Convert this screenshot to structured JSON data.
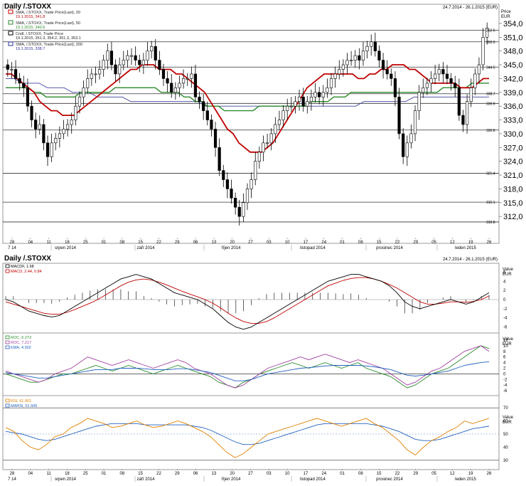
{
  "main": {
    "title": "Daily /.STOXX",
    "date_range": "24.7.2014 - 26.1.2015 (EUR)",
    "price_axis_title": "Price",
    "price_axis_unit": "EUR",
    "legend": [
      {
        "line1": "SMA, /.STOXX, Trade Price(Last), 20",
        "line2": "19.1.2015, 341.8",
        "color": "#c00000"
      },
      {
        "line1": "SMA, /.STOXX, Trade Price(Last), 50",
        "line2": "19.1.2015, 340.6",
        "color": "#2a8a2a"
      },
      {
        "line1": "Cndl, /.STOXX, Trade Price",
        "line2": "19.1.2015, 351.3, 354.2, 351.3, 353.1",
        "color": "#000000"
      },
      {
        "line1": "SMA, /.STOXX, Trade Price(Last), 200",
        "line2": "19.1.2015, 338.7",
        "color": "#3030a0"
      }
    ],
    "hlines": [
      {
        "value": 352.5,
        "label": "352.5"
      },
      {
        "value": 350.0,
        "label": "350.0"
      },
      {
        "value": 344.5,
        "label": "344.5"
      },
      {
        "value": 338.7,
        "label": "338.7"
      },
      {
        "value": 336.6,
        "label": "336.6"
      },
      {
        "value": 330.8,
        "label": "330.8"
      },
      {
        "value": 321.4,
        "label": "321.4"
      },
      {
        "value": 315.1,
        "label": "315.1"
      },
      {
        "value": 310.8,
        "label": "310.8"
      }
    ],
    "x_day_labels": [
      "28",
      "04",
      "11",
      "18",
      "25",
      "01",
      "08",
      "15",
      "22",
      "29",
      "06",
      "13",
      "20",
      "27",
      "03",
      "10",
      "17",
      "24",
      "01",
      "08",
      "15",
      "22",
      "29",
      "05",
      "12",
      "19",
      "26"
    ],
    "x_month_labels": [
      "7 14",
      "srpen 2014",
      "září 2014",
      "říjen 2014",
      "listopad 2014",
      "prosinec 2014",
      "leden 2015"
    ]
  },
  "macd": {
    "title": "Daily /.STOXX",
    "date_range": "24.7.2014 - 26.1.2015 (EUR)",
    "legend": [
      {
        "text": "MACDF, 1.68",
        "color": "#000000"
      },
      {
        "text": "MACD, 2.44, 0.84",
        "color": "#c00000"
      }
    ],
    "axis_title": "Value",
    "axis_unit": "EUR"
  },
  "roc": {
    "legend": [
      {
        "text": "ROC, 6.273",
        "color": "#2a8a2a"
      },
      {
        "text": "ROC, 7.217",
        "color": "#a040a0"
      },
      {
        "text": "EMA, 4.302",
        "color": "#2060c0"
      }
    ],
    "axis_title": "Value",
    "axis_unit": "EUR"
  },
  "rsi": {
    "legend": [
      {
        "text": "RSI, 61.901",
        "color": "#e08000"
      },
      {
        "text": "MARSI, 51.506",
        "color": "#2060c0"
      }
    ],
    "axis_title": "Value",
    "axis_unit": "EUR"
  },
  "chart_data": [
    {
      "type": "candlestick",
      "title": "Daily /.STOXX",
      "ylabel": "Price EUR",
      "ylim": [
        308,
        356
      ],
      "yticks": [
        312,
        315,
        318,
        321,
        324,
        327,
        330,
        333,
        336,
        339,
        342,
        345,
        348,
        351,
        354
      ],
      "close": [
        344,
        344,
        342,
        341,
        340,
        336,
        333,
        331,
        332,
        328,
        325,
        328,
        329,
        330,
        331,
        332,
        333,
        336,
        338,
        340,
        342,
        343,
        343,
        344,
        346,
        348,
        345,
        343,
        345,
        346,
        347,
        347,
        346,
        345,
        346,
        348,
        349,
        346,
        344,
        342,
        341,
        339,
        340,
        341,
        342,
        342,
        343,
        338,
        337,
        335,
        333,
        331,
        327,
        322,
        320,
        318,
        316,
        314,
        312,
        315,
        318,
        320,
        324,
        326,
        328,
        328,
        330,
        332,
        333,
        335,
        336,
        336,
        337,
        338,
        336,
        337,
        338,
        339,
        338,
        339,
        340,
        342,
        343,
        344,
        345,
        346,
        346,
        347,
        346,
        348,
        349,
        350,
        348,
        346,
        344,
        343,
        342,
        338,
        330,
        325,
        328,
        330,
        335,
        339,
        340,
        341,
        342,
        343,
        344,
        343,
        342,
        341,
        340,
        334,
        332,
        337,
        340,
        343,
        345,
        351,
        353
      ],
      "sma20": [
        343,
        343,
        342,
        341,
        340,
        339,
        337,
        336,
        335,
        335,
        334,
        334,
        334,
        335,
        336,
        337,
        338,
        339,
        340,
        341,
        342,
        343,
        344,
        344,
        345,
        345,
        345,
        344,
        344,
        344,
        343,
        343,
        342,
        341,
        340,
        339,
        337,
        335,
        333,
        331,
        330,
        328,
        327,
        326,
        326,
        326,
        327,
        328,
        330,
        332,
        334,
        336,
        338,
        340,
        341,
        342,
        343,
        343,
        343,
        343,
        343,
        343,
        342,
        342,
        343,
        343,
        344,
        344,
        345,
        345,
        345,
        344,
        344,
        343,
        342,
        341,
        341,
        341,
        341,
        341,
        340,
        340,
        340,
        341,
        342,
        342
      ],
      "sma50": [
        340,
        340,
        340,
        340,
        340,
        339,
        339,
        338,
        338,
        338,
        338,
        338,
        338,
        339,
        339,
        339,
        339,
        339,
        339,
        340,
        340,
        340,
        340,
        340,
        340,
        340,
        340,
        339,
        339,
        339,
        339,
        338,
        338,
        337,
        337,
        336,
        336,
        336,
        335,
        335,
        335,
        335,
        335,
        335,
        336,
        336,
        336,
        336,
        336,
        336,
        336,
        336,
        336,
        337,
        337,
        337,
        337,
        338,
        338,
        338,
        339,
        339,
        339,
        339,
        339,
        339,
        339,
        339,
        339,
        339,
        339,
        339,
        339,
        339,
        339,
        339,
        340,
        340,
        340,
        340,
        340,
        341,
        341,
        341,
        341
      ],
      "sma200": [
        342,
        342,
        341,
        341,
        341,
        340,
        340,
        340,
        339,
        339,
        339,
        338,
        338,
        338,
        338,
        337,
        337,
        337,
        337,
        337,
        337,
        337,
        337,
        337,
        336,
        336,
        336,
        336,
        336,
        336,
        336,
        336,
        336,
        336,
        336,
        336,
        336,
        336,
        336,
        336,
        336,
        336,
        336,
        337,
        337,
        337,
        337,
        337,
        337,
        338,
        338,
        338,
        338,
        338,
        338,
        338,
        338,
        338,
        338
      ]
    },
    {
      "type": "line",
      "title": "MACD",
      "ylim": [
        -7,
        7
      ],
      "series": [
        {
          "name": "MACDF",
          "values": [
            0,
            -0.5,
            -1.5,
            -2.5,
            -3,
            -3.5,
            -3.8,
            -3.5,
            -2.5,
            -1.5,
            -0.5,
            0.5,
            1.5,
            2.5,
            3.5,
            4.5,
            5,
            5.5,
            5,
            4.5,
            3.5,
            2.5,
            1.5,
            1,
            0.5,
            0,
            -1,
            -2,
            -3.5,
            -5,
            -6,
            -6.5,
            -6,
            -5,
            -4,
            -3,
            -2,
            -1,
            0,
            1,
            2,
            3,
            4,
            4.5,
            5,
            5.5,
            5.5,
            5,
            4.5,
            4,
            3,
            1.5,
            -0.5,
            -1.5,
            -2,
            -1.5,
            -1,
            -0.5,
            0,
            -0.5,
            -1,
            -0.5,
            0.5,
            1.5
          ]
        },
        {
          "name": "MACD",
          "values": [
            -0.5,
            -1,
            -1.5,
            -2,
            -2.5,
            -3,
            -3.2,
            -3.2,
            -2.8,
            -2.2,
            -1.5,
            -0.8,
            0,
            1,
            2,
            3,
            3.8,
            4.3,
            4.5,
            4.3,
            3.8,
            3.2,
            2.5,
            1.8,
            1.2,
            0.6,
            0,
            -0.8,
            -1.8,
            -3,
            -4,
            -4.8,
            -5.2,
            -5.2,
            -4.8,
            -4,
            -3,
            -2,
            -1,
            0,
            1,
            2,
            3,
            3.6,
            4.2,
            4.6,
            4.8,
            4.8,
            4.5,
            4,
            3.3,
            2.5,
            1.5,
            0.5,
            -0.5,
            -1,
            -1,
            -0.8,
            -0.5,
            -0.5,
            -0.6,
            -0.4,
            0,
            0.8
          ]
        }
      ]
    },
    {
      "type": "line",
      "title": "ROC",
      "ylim": [
        -7,
        13
      ],
      "series": [
        {
          "name": "ROC",
          "values": [
            0,
            -1,
            -2,
            -3,
            -3,
            -2,
            -1,
            0,
            0,
            1,
            2,
            3,
            2,
            1,
            2,
            3,
            2,
            1,
            0,
            1,
            2,
            3,
            2,
            1,
            0,
            -1,
            -3,
            -4,
            -5,
            -3,
            -2,
            0,
            1,
            2,
            3,
            4,
            3,
            2,
            3,
            4,
            3,
            2,
            3,
            4,
            2,
            1,
            0,
            -1,
            -3,
            -5,
            -4,
            -2,
            0,
            1,
            2,
            4,
            6,
            8,
            10,
            9
          ]
        },
        {
          "name": "ROC",
          "values": [
            1,
            0,
            -1,
            -2,
            -3,
            -2,
            0,
            1,
            2,
            4,
            6,
            5,
            4,
            3,
            4,
            5,
            4,
            3,
            2,
            3,
            4,
            5,
            4,
            2,
            1,
            0,
            -2,
            -4,
            -5,
            -4,
            -2,
            0,
            2,
            3,
            4,
            5,
            6,
            5,
            6,
            7,
            6,
            5,
            4,
            5,
            4,
            3,
            2,
            0,
            -2,
            -4,
            -3,
            -1,
            1,
            2,
            4,
            6,
            8,
            9,
            10,
            8
          ]
        },
        {
          "name": "EMA",
          "values": [
            0.5,
            0,
            -0.5,
            -1,
            -1.5,
            -1.5,
            -1,
            -0.5,
            0,
            0.5,
            1,
            1.5,
            1.5,
            1.5,
            2,
            2,
            2,
            1.8,
            1.5,
            1.5,
            1.5,
            1.8,
            1.8,
            1.5,
            1,
            0.5,
            -0.5,
            -1.5,
            -2.5,
            -2.5,
            -2,
            -1,
            0,
            0.5,
            1,
            1.5,
            2,
            2.2,
            2.5,
            2.8,
            3,
            3,
            3,
            3,
            2.8,
            2.5,
            2,
            1.5,
            0.5,
            -0.5,
            -0.8,
            -0.5,
            0,
            0.5,
            1,
            2,
            3,
            3.5,
            4,
            4.3
          ]
        }
      ]
    },
    {
      "type": "line",
      "title": "RSI",
      "ylim": [
        25,
        75
      ],
      "series": [
        {
          "name": "RSI",
          "values": [
            55,
            52,
            45,
            40,
            38,
            42,
            48,
            50,
            55,
            58,
            62,
            60,
            58,
            55,
            56,
            58,
            60,
            57,
            55,
            56,
            58,
            60,
            58,
            55,
            52,
            48,
            42,
            36,
            32,
            35,
            40,
            45,
            50,
            52,
            54,
            56,
            58,
            60,
            62,
            60,
            58,
            56,
            58,
            60,
            62,
            58,
            55,
            50,
            45,
            38,
            34,
            40,
            45,
            48,
            52,
            55,
            60,
            58,
            60,
            62
          ]
        },
        {
          "name": "MARSI",
          "values": [
            52,
            51,
            50,
            48,
            46,
            45,
            46,
            48,
            50,
            52,
            54,
            56,
            57,
            58,
            58,
            58,
            58,
            57,
            57,
            57,
            57,
            57,
            57,
            56,
            55,
            53,
            50,
            47,
            44,
            42,
            42,
            43,
            45,
            47,
            49,
            51,
            53,
            55,
            57,
            58,
            58,
            58,
            58,
            58,
            58,
            57,
            56,
            54,
            52,
            49,
            46,
            45,
            45,
            46,
            48,
            50,
            52,
            54,
            55,
            56
          ]
        }
      ]
    }
  ]
}
